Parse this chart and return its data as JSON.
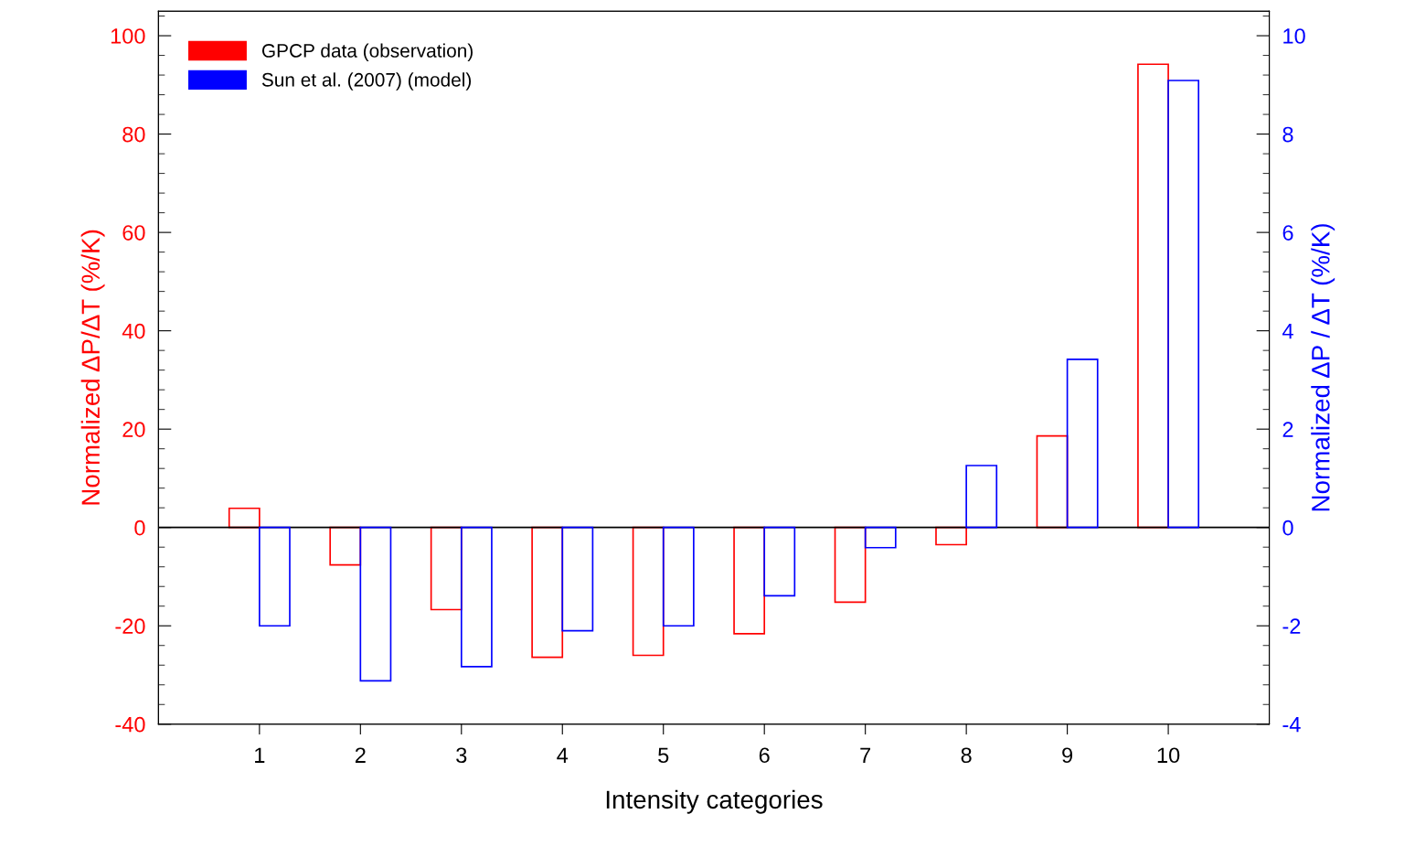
{
  "chart_data": {
    "type": "bar",
    "xlabel": "Intensity categories",
    "ylabel": "Normalized ΔP/ΔT (%/K)",
    "y2label": "Normalized ΔP / ΔT (%/K)",
    "categories": [
      "1",
      "2",
      "3",
      "4",
      "5",
      "6",
      "7",
      "8",
      "9",
      "10"
    ],
    "series": [
      {
        "name": "GPCP data (observation)",
        "color": "#ff0000",
        "values": [
          3.9,
          -7.6,
          -16.7,
          -26.4,
          -26.0,
          -21.6,
          -15.2,
          -3.5,
          18.6,
          94.2
        ]
      },
      {
        "name": "Sun et al. (2007) (model)",
        "color": "#0000ff",
        "axis": "y2",
        "values": [
          -2.0,
          -3.12,
          -2.83,
          -2.1,
          -2.0,
          -1.39,
          -0.41,
          1.26,
          3.42,
          9.09
        ]
      }
    ],
    "ylim": [
      -40,
      105
    ],
    "yticks": [
      -40,
      -20,
      0,
      20,
      40,
      60,
      80,
      100
    ],
    "y2lim": [
      -4,
      10.5
    ],
    "y2ticks": [
      -4,
      -2,
      0,
      2,
      4,
      6,
      8,
      10
    ],
    "ref_lines": [
      {
        "axis": "y",
        "value": 0,
        "color": "#000000"
      }
    ],
    "legend": "top left",
    "grid": false
  }
}
